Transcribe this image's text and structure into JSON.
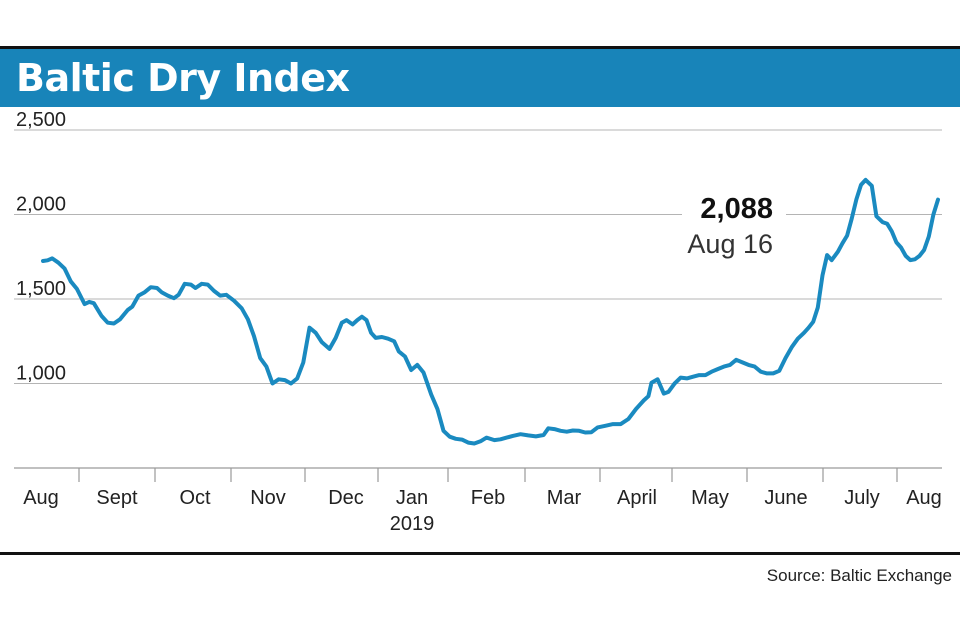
{
  "title": "Baltic Dry Index",
  "source": "Source: Baltic Exchange",
  "colors": {
    "title_bar": "#1884b9",
    "line": "#1a8ac0",
    "grid": "#b4b4b4",
    "text": "#222222"
  },
  "chart_data": {
    "type": "line",
    "title": "Baltic Dry Index",
    "xlabel": "",
    "ylabel": "",
    "ylim": [
      500,
      2500
    ],
    "y_ticks": [
      1000,
      1500,
      2000,
      2500
    ],
    "y_tick_labels": [
      "1,000",
      "1,500",
      "2,000",
      "2,500"
    ],
    "x_tick_labels": [
      "Aug",
      "Sept",
      "Oct",
      "Nov",
      "Dec",
      "Jan",
      "Feb",
      "Mar",
      "April",
      "May",
      "June",
      "July",
      "Aug"
    ],
    "x_year_label": "2019",
    "grid": true,
    "annotation": {
      "value": "2,088",
      "date": "Aug 16"
    },
    "series": [
      {
        "values": [
          [
            0.0,
            1725
          ],
          [
            0.03,
            1729
          ],
          [
            0.06,
            1740
          ],
          [
            0.1,
            1715
          ],
          [
            0.14,
            1680
          ],
          [
            0.18,
            1605
          ],
          [
            0.22,
            1560
          ],
          [
            0.27,
            1470
          ],
          [
            0.3,
            1483
          ],
          [
            0.33,
            1475
          ],
          [
            0.38,
            1400
          ],
          [
            0.42,
            1360
          ],
          [
            0.46,
            1355
          ],
          [
            0.5,
            1380
          ],
          [
            0.55,
            1435
          ],
          [
            0.58,
            1455
          ],
          [
            0.62,
            1520
          ],
          [
            0.66,
            1540
          ],
          [
            0.7,
            1570
          ],
          [
            0.74,
            1565
          ],
          [
            0.77,
            1540
          ],
          [
            0.81,
            1520
          ],
          [
            0.85,
            1505
          ],
          [
            0.88,
            1525
          ],
          [
            0.92,
            1590
          ],
          [
            0.96,
            1585
          ],
          [
            0.99,
            1565
          ],
          [
            1.03,
            1590
          ],
          [
            1.07,
            1585
          ],
          [
            1.11,
            1548
          ],
          [
            1.15,
            1520
          ],
          [
            1.19,
            1525
          ],
          [
            1.24,
            1490
          ],
          [
            1.29,
            1445
          ],
          [
            1.33,
            1380
          ],
          [
            1.37,
            1280
          ],
          [
            1.41,
            1150
          ],
          [
            1.45,
            1100
          ],
          [
            1.49,
            1000
          ],
          [
            1.53,
            1025
          ],
          [
            1.57,
            1020
          ],
          [
            1.61,
            1000
          ],
          [
            1.65,
            1030
          ],
          [
            1.69,
            1125
          ],
          [
            1.73,
            1330
          ],
          [
            1.77,
            1300
          ],
          [
            1.81,
            1245
          ],
          [
            1.86,
            1205
          ],
          [
            1.9,
            1270
          ],
          [
            1.94,
            1360
          ],
          [
            1.97,
            1375
          ],
          [
            2.01,
            1350
          ],
          [
            2.04,
            1375
          ],
          [
            2.07,
            1395
          ],
          [
            2.1,
            1375
          ],
          [
            2.13,
            1300
          ],
          [
            2.16,
            1270
          ],
          [
            2.2,
            1275
          ],
          [
            2.24,
            1265
          ],
          [
            2.28,
            1250
          ],
          [
            2.31,
            1190
          ],
          [
            2.35,
            1160
          ],
          [
            2.39,
            1080
          ],
          [
            2.43,
            1110
          ],
          [
            2.47,
            1065
          ],
          [
            2.52,
            935
          ],
          [
            2.56,
            850
          ],
          [
            2.6,
            720
          ],
          [
            2.64,
            685
          ],
          [
            2.68,
            673
          ],
          [
            2.72,
            668
          ],
          [
            2.76,
            650
          ],
          [
            2.8,
            645
          ],
          [
            2.84,
            658
          ],
          [
            2.88,
            680
          ],
          [
            2.93,
            665
          ],
          [
            2.97,
            670
          ],
          [
            3.01,
            680
          ],
          [
            3.05,
            690
          ],
          [
            3.1,
            700
          ],
          [
            3.15,
            693
          ],
          [
            3.2,
            687
          ],
          [
            3.25,
            695
          ],
          [
            3.28,
            735
          ],
          [
            3.32,
            730
          ],
          [
            3.36,
            720
          ],
          [
            3.4,
            715
          ],
          [
            3.44,
            722
          ],
          [
            3.48,
            720
          ],
          [
            3.52,
            710
          ],
          [
            3.56,
            712
          ],
          [
            3.6,
            740
          ],
          [
            3.65,
            750
          ],
          [
            3.7,
            760
          ],
          [
            3.75,
            760
          ],
          [
            3.8,
            790
          ],
          [
            3.85,
            850
          ],
          [
            3.9,
            900
          ],
          [
            3.93,
            925
          ],
          [
            3.95,
            1005
          ],
          [
            3.99,
            1025
          ],
          [
            4.03,
            940
          ],
          [
            4.06,
            950
          ],
          [
            4.1,
            1000
          ],
          [
            4.14,
            1035
          ],
          [
            4.18,
            1030
          ],
          [
            4.22,
            1040
          ],
          [
            4.26,
            1050
          ],
          [
            4.3,
            1050
          ],
          [
            4.34,
            1070
          ],
          [
            4.38,
            1085
          ],
          [
            4.42,
            1100
          ],
          [
            4.46,
            1110
          ],
          [
            4.5,
            1140
          ],
          [
            4.54,
            1125
          ],
          [
            4.58,
            1110
          ],
          [
            4.62,
            1100
          ],
          [
            4.66,
            1070
          ],
          [
            4.7,
            1060
          ],
          [
            4.74,
            1060
          ],
          [
            4.78,
            1075
          ],
          [
            4.82,
            1150
          ],
          [
            4.86,
            1215
          ],
          [
            4.9,
            1265
          ],
          [
            4.94,
            1300
          ],
          [
            4.97,
            1330
          ],
          [
            5.0,
            1365
          ],
          [
            5.03,
            1450
          ],
          [
            5.06,
            1640
          ],
          [
            5.09,
            1760
          ],
          [
            5.12,
            1730
          ],
          [
            5.16,
            1780
          ],
          [
            5.19,
            1830
          ],
          [
            5.22,
            1875
          ],
          [
            5.25,
            1975
          ],
          [
            5.28,
            2090
          ],
          [
            5.31,
            2175
          ],
          [
            5.34,
            2205
          ],
          [
            5.38,
            2170
          ],
          [
            5.41,
            1990
          ],
          [
            5.45,
            1955
          ],
          [
            5.48,
            1945
          ],
          [
            5.51,
            1900
          ],
          [
            5.54,
            1835
          ],
          [
            5.57,
            1805
          ],
          [
            5.6,
            1755
          ],
          [
            5.63,
            1730
          ],
          [
            5.66,
            1735
          ],
          [
            5.69,
            1755
          ],
          [
            5.72,
            1790
          ],
          [
            5.75,
            1870
          ],
          [
            5.78,
            2000
          ],
          [
            5.81,
            2088
          ]
        ]
      }
    ]
  }
}
